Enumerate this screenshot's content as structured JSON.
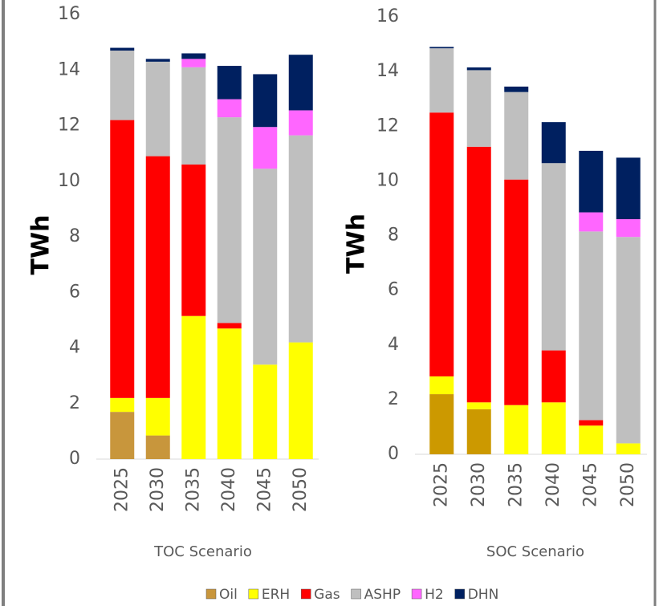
{
  "chart_data": [
    {
      "type": "bar",
      "stacked": true,
      "x_label": "TOC Scenario",
      "y_label": "TWh",
      "categories": [
        "2025",
        "2030",
        "2035",
        "2040",
        "2045",
        "2050"
      ],
      "ylim": [
        0,
        16
      ],
      "yticks": [
        0,
        2,
        4,
        6,
        8,
        10,
        12,
        14,
        16
      ],
      "series": [
        {
          "name": "Oil",
          "color": "#c8963c",
          "values": [
            1.7,
            0.85,
            0,
            0,
            0,
            0
          ]
        },
        {
          "name": "ERH",
          "color": "#ffff00",
          "values": [
            0.5,
            1.35,
            5.15,
            4.7,
            3.4,
            4.2
          ]
        },
        {
          "name": "Gas",
          "color": "#ff0000",
          "values": [
            10.0,
            8.7,
            5.45,
            0.2,
            0,
            0
          ]
        },
        {
          "name": "ASHP",
          "color": "#bfbfbf",
          "values": [
            2.5,
            3.4,
            3.5,
            7.4,
            7.05,
            7.45
          ]
        },
        {
          "name": "H2",
          "color": "#ff66ff",
          "values": [
            0,
            0,
            0.3,
            0.65,
            1.5,
            0.9
          ]
        },
        {
          "name": "DHN",
          "color": "#002060",
          "values": [
            0.1,
            0.1,
            0.2,
            1.2,
            1.9,
            2.0
          ]
        }
      ]
    },
    {
      "type": "bar",
      "stacked": true,
      "x_label": "SOC Scenario",
      "y_label": "TWh",
      "categories": [
        "2025",
        "2030",
        "2035",
        "2040",
        "2045",
        "2050"
      ],
      "ylim": [
        0,
        16
      ],
      "yticks": [
        0,
        2,
        4,
        6,
        8,
        10,
        12,
        14,
        16
      ],
      "series": [
        {
          "name": "Oil",
          "color": "#cc9900",
          "values": [
            2.2,
            1.65,
            0,
            0,
            0,
            0
          ]
        },
        {
          "name": "ERH",
          "color": "#ffff00",
          "values": [
            0.65,
            0.25,
            1.8,
            1.9,
            1.05,
            0.4
          ]
        },
        {
          "name": "Gas",
          "color": "#ff0000",
          "values": [
            9.65,
            9.35,
            8.25,
            1.9,
            0.2,
            0
          ]
        },
        {
          "name": "ASHP",
          "color": "#bfbfbf",
          "values": [
            2.35,
            2.8,
            3.2,
            6.85,
            6.9,
            7.55
          ]
        },
        {
          "name": "H2",
          "color": "#ff66ff",
          "values": [
            0,
            0,
            0,
            0,
            0.7,
            0.65
          ]
        },
        {
          "name": "DHN",
          "color": "#002060",
          "values": [
            0.05,
            0.1,
            0.2,
            1.5,
            2.25,
            2.25
          ]
        }
      ]
    }
  ]
}
